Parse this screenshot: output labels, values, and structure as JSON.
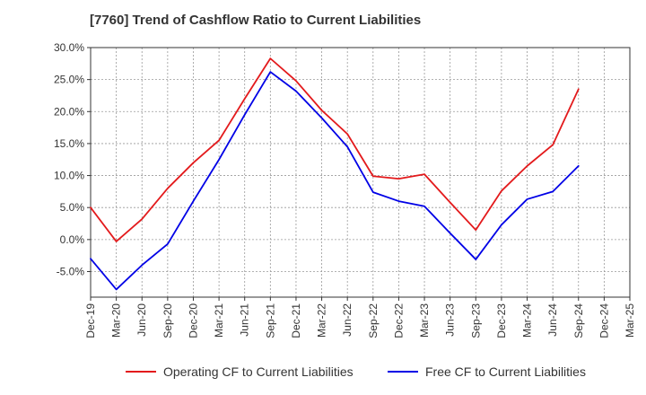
{
  "chart_data": {
    "type": "line",
    "title": "[7760]  Trend of Cashflow Ratio to Current Liabilities",
    "xlabel": "",
    "ylabel": "",
    "categories": [
      "Dec-19",
      "Mar-20",
      "Jun-20",
      "Sep-20",
      "Dec-20",
      "Mar-21",
      "Jun-21",
      "Sep-21",
      "Dec-21",
      "Mar-22",
      "Jun-22",
      "Sep-22",
      "Dec-22",
      "Mar-23",
      "Jun-23",
      "Sep-23",
      "Dec-23",
      "Mar-24",
      "Jun-24",
      "Sep-24",
      "Dec-24",
      "Mar-25"
    ],
    "y_ticks": [
      "30.0%",
      "25.0%",
      "20.0%",
      "15.0%",
      "10.0%",
      "5.0%",
      "0.0%",
      "-5.0%"
    ],
    "ylim": [
      -9,
      30
    ],
    "grid": true,
    "legend_position": "bottom",
    "series": [
      {
        "name": "Operating CF to Current Liabilities",
        "color": "#e31a1c",
        "values": [
          5.0,
          -0.3,
          3.2,
          8.0,
          12.0,
          15.5,
          22.0,
          28.3,
          24.8,
          20.2,
          16.5,
          9.9,
          9.5,
          10.2,
          5.8,
          1.5,
          7.6,
          11.5,
          14.8,
          23.5,
          null,
          null
        ]
      },
      {
        "name": "Free CF to Current Liabilities",
        "color": "#0000e6",
        "values": [
          -3.0,
          -7.8,
          -4.0,
          -0.7,
          6.0,
          12.5,
          19.5,
          26.2,
          23.2,
          19.0,
          14.5,
          7.4,
          6.0,
          5.2,
          1.0,
          -3.1,
          2.3,
          6.3,
          7.5,
          11.5,
          null,
          null
        ]
      }
    ]
  }
}
